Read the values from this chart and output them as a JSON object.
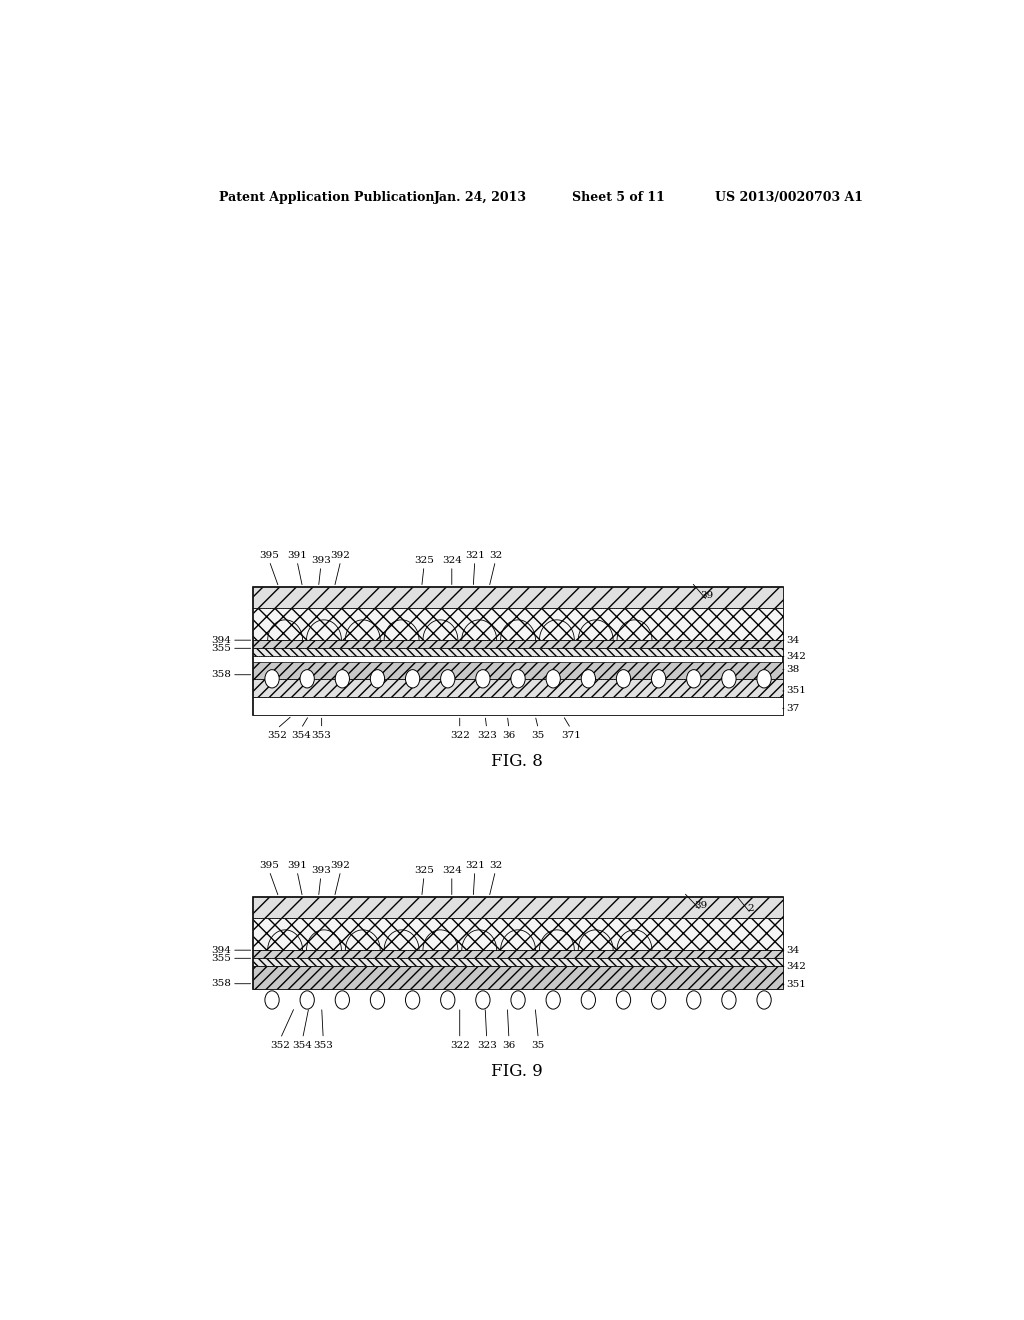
{
  "bg_color": "#ffffff",
  "header_text": "Patent Application Publication",
  "header_date": "Jan. 24, 2013",
  "header_sheet": "Sheet 5 of 11",
  "header_patent": "US 2013/0020703 A1",
  "fig8_label": "FIG. 8",
  "fig9_label": "FIG. 9",
  "line_color": "#000000"
}
